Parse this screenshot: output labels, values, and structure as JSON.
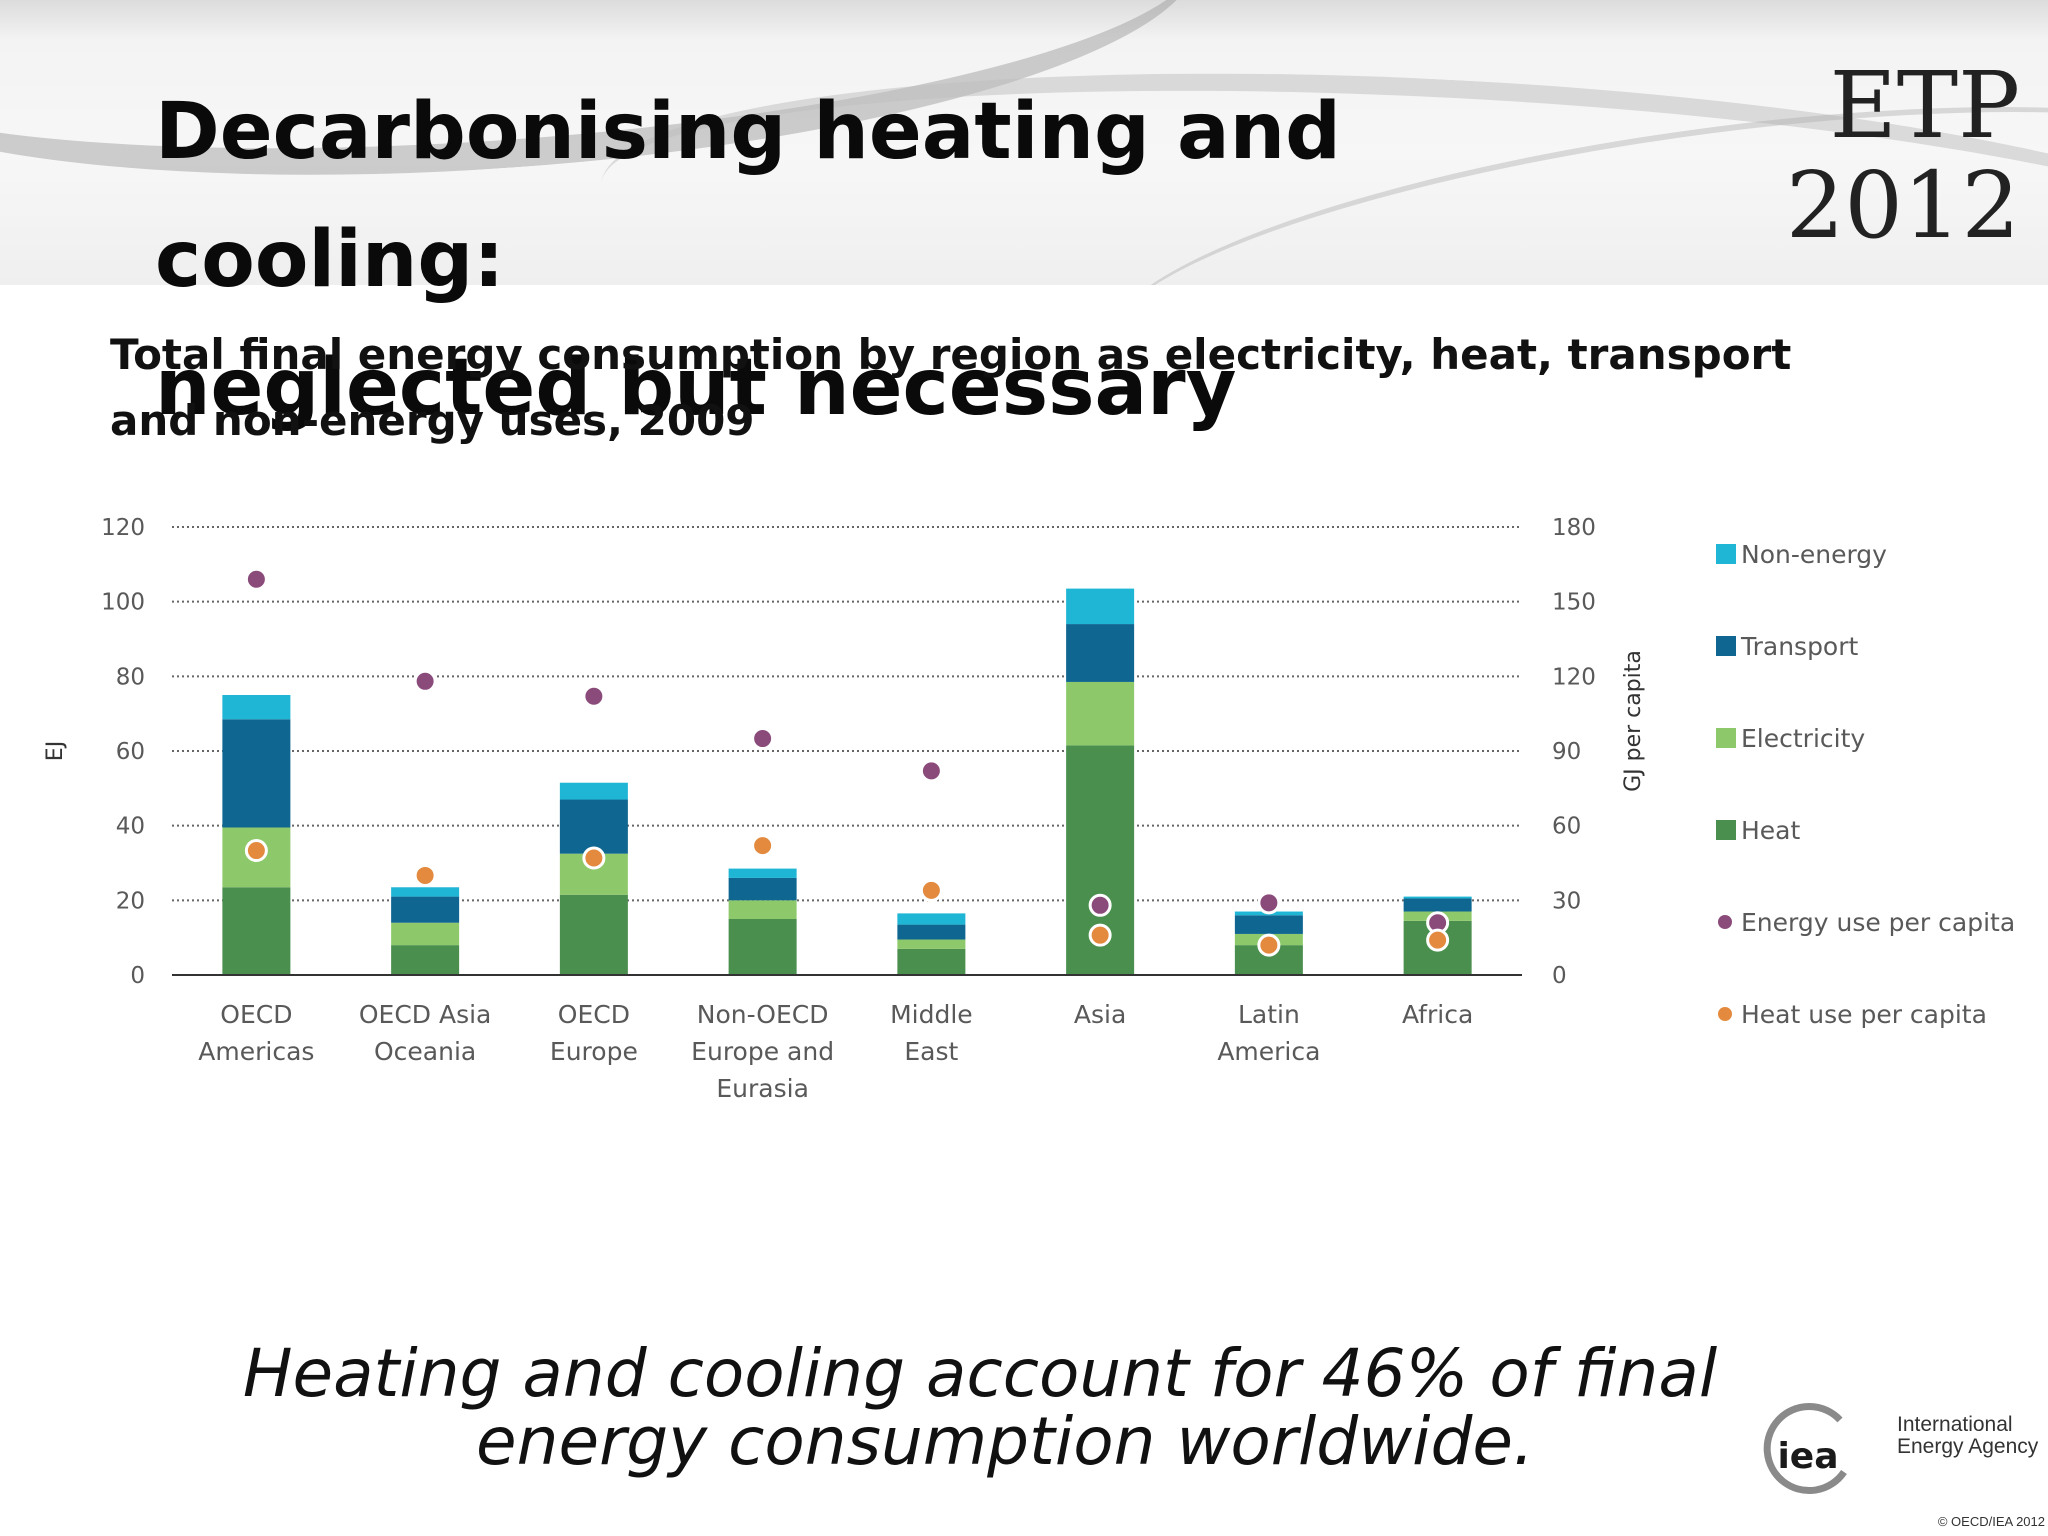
{
  "slide": {
    "title_line1": "Decarbonising heating and cooling:",
    "title_line2": "neglected but necessary",
    "badge_line1": "ETP",
    "badge_line2": "2012",
    "chart_title_line1": "Total final energy consumption by region as electricity, heat, transport",
    "chart_title_line2": "and non-energy uses, 2009",
    "caption_line1": "Heating and cooling account for 46% of final",
    "caption_line2": "energy consumption worldwide.",
    "org_line1": "International",
    "org_line2": "Energy Agency",
    "logo_text": "iea",
    "copyright": "© OECD/IEA 2012"
  },
  "chart_data": {
    "type": "bar",
    "stacked": true,
    "categories": [
      [
        "OECD",
        "Americas"
      ],
      [
        "OECD Asia",
        "Oceania"
      ],
      [
        "OECD",
        "Europe"
      ],
      [
        "Non-OECD",
        "Europe and",
        "Eurasia"
      ],
      [
        "Middle",
        "East"
      ],
      [
        "Asia"
      ],
      [
        "Latin",
        "America"
      ],
      [
        "Africa"
      ]
    ],
    "series": [
      {
        "name": "Heat",
        "axis": "left",
        "color": "#4a8f4e",
        "values": [
          23.5,
          8,
          21.5,
          15,
          7,
          61.5,
          8,
          14.5
        ]
      },
      {
        "name": "Electricity",
        "axis": "left",
        "color": "#8dc96a",
        "values": [
          16,
          6,
          11,
          5,
          2.5,
          17,
          3,
          2.5
        ]
      },
      {
        "name": "Transport",
        "axis": "left",
        "color": "#0f6690",
        "values": [
          29,
          7,
          14.5,
          6,
          4,
          15.5,
          5,
          3.5
        ]
      },
      {
        "name": "Non-energy",
        "axis": "left",
        "color": "#1fb5d5",
        "values": [
          6.5,
          2.5,
          4.5,
          2.5,
          3,
          9.5,
          1,
          0.5
        ]
      },
      {
        "name": "Energy use per capita",
        "axis": "right",
        "type": "scatter",
        "color": "#8a4b7b",
        "values": [
          159,
          118,
          112,
          95,
          82,
          28,
          29,
          21
        ]
      },
      {
        "name": "Heat use per capita",
        "axis": "right",
        "type": "scatter",
        "color": "#e38a3e",
        "values": [
          50,
          40,
          47,
          52,
          34,
          16,
          12,
          14
        ]
      }
    ],
    "ylabel": "EJ",
    "y2label": "GJ per capita",
    "ylim": [
      0,
      120
    ],
    "y2lim": [
      0,
      180
    ],
    "yticks": [
      0,
      20,
      40,
      60,
      80,
      100,
      120
    ],
    "y2ticks": [
      0,
      30,
      60,
      90,
      120,
      150,
      180
    ],
    "grid": true,
    "legend_position": "right",
    "legend_order": [
      "Non-energy",
      "Transport",
      "Electricity",
      "Heat",
      "Energy use per capita",
      "Heat use per capita"
    ]
  }
}
